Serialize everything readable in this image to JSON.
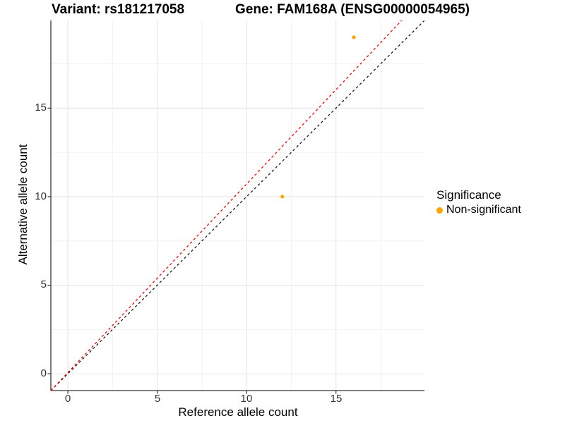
{
  "chart_data": {
    "type": "scatter",
    "title_left": "Variant: rs181217058",
    "title_right": "Gene: FAM168A (ENSG00000054965)",
    "xlabel": "Reference allele count",
    "ylabel": "Alternative allele count",
    "xlim": [
      -0.95,
      19.95
    ],
    "ylim": [
      -0.95,
      19.95
    ],
    "x_ticks": [
      0,
      5,
      10,
      15
    ],
    "y_ticks": [
      0,
      5,
      10,
      15
    ],
    "x_minor_ticks": [
      2.5,
      7.5,
      12.5,
      17.5
    ],
    "y_minor_ticks": [
      2.5,
      7.5,
      12.5,
      17.5
    ],
    "grid": true,
    "points": [
      {
        "x": 12,
        "y": 10,
        "series": "Non-significant"
      },
      {
        "x": 16,
        "y": 19,
        "series": "Non-significant"
      }
    ],
    "point_color": "#FFA500",
    "reference_lines": [
      {
        "name": "identity-line",
        "slope": 1,
        "intercept": 0,
        "color": "#1A1A1A",
        "dashed": true
      },
      {
        "name": "allelic-ratio-line",
        "slope": 1.065,
        "intercept": 0.065,
        "color": "#FF0000",
        "dashed": true
      }
    ],
    "legend": {
      "title": "Significance",
      "position": "right",
      "items": [
        {
          "label": "Non-significant",
          "color": "#FFA500"
        }
      ]
    },
    "colors": {
      "grid_major": "#E6E6E6",
      "grid_minor": "#F2F2F2",
      "axis_line": "#333333",
      "title_text": "#000000",
      "tick_text": "#303030"
    }
  }
}
